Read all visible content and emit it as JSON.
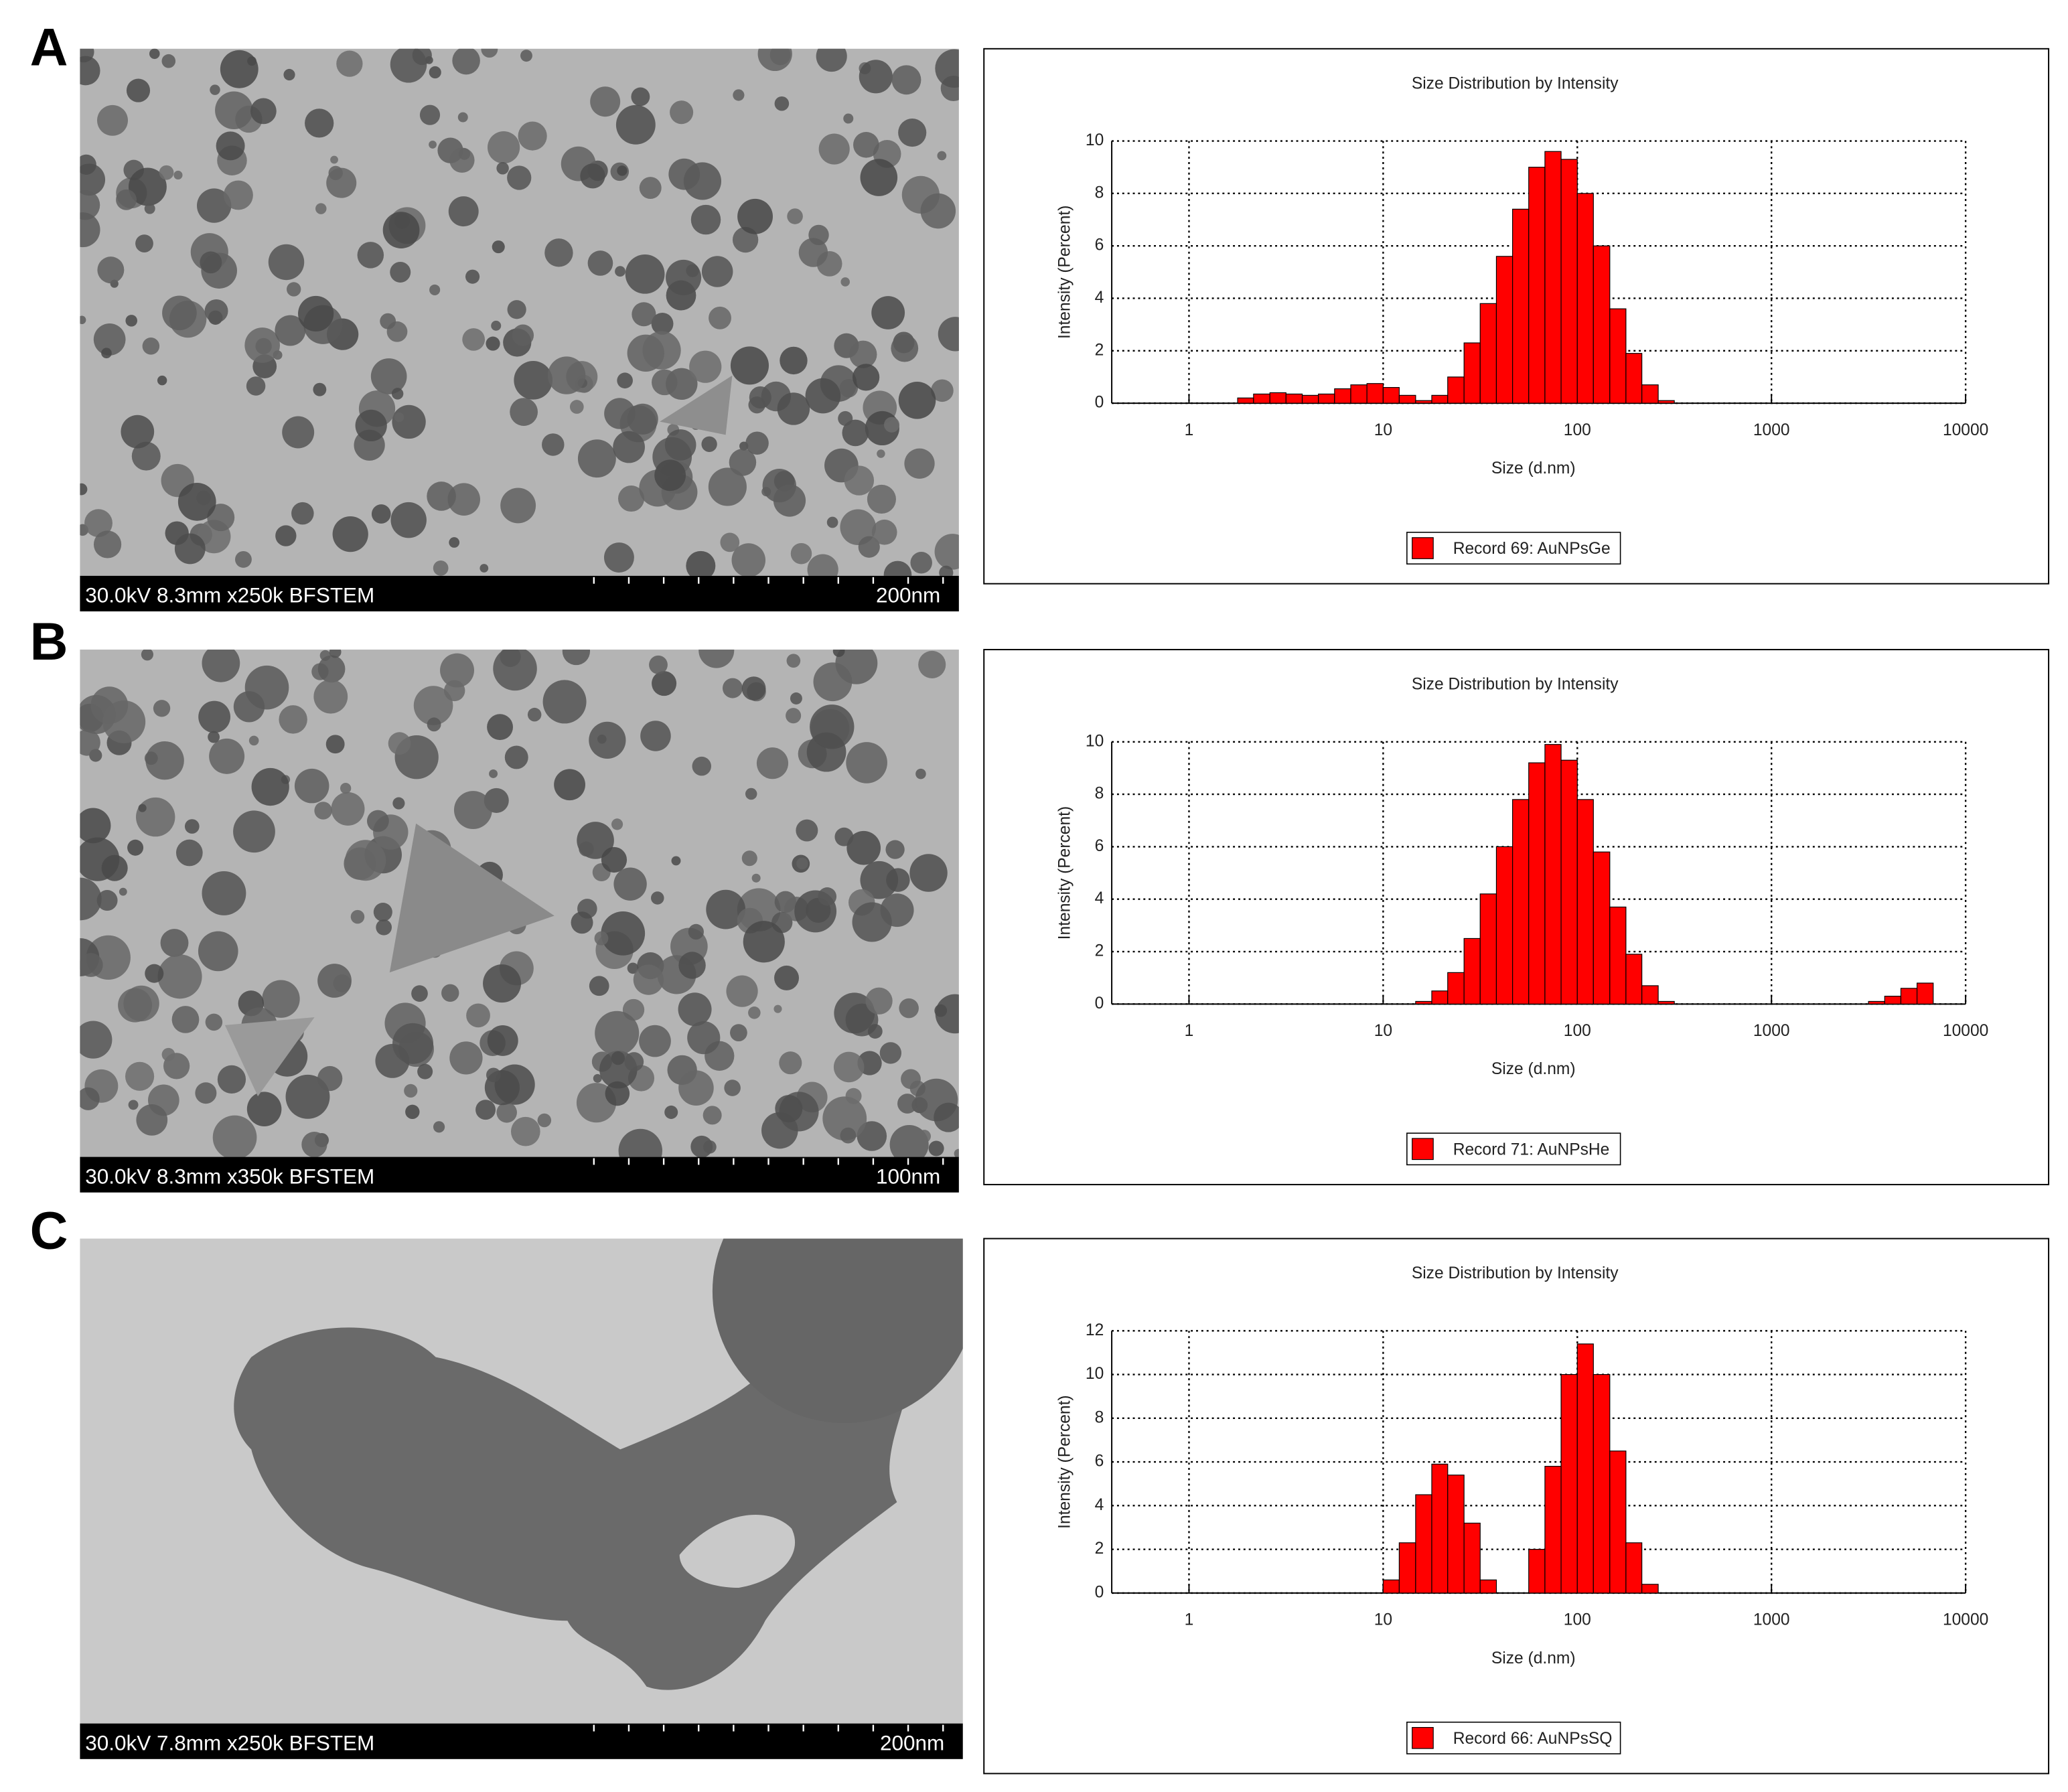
{
  "panels": [
    {
      "label": "A",
      "sem_info": "30.0kV 8.3mm x250k BFSTEM",
      "sem_scale": "200nm"
    },
    {
      "label": "B",
      "sem_info": "30.0kV 8.3mm x350k BFSTEM",
      "sem_scale": "100nm"
    },
    {
      "label": "C",
      "sem_info": "30.0kV 7.8mm x250k BFSTEM",
      "sem_scale": "200nm"
    }
  ],
  "chart_data": [
    {
      "type": "histogram",
      "title": "Size Distribution by Intensity",
      "x_label": "Size (d.nm)",
      "y_label": "Intensity (Percent)",
      "xscale": "log",
      "xlim": [
        0.4,
        10000
      ],
      "xticks": [
        1,
        10,
        100,
        1000,
        10000
      ],
      "ylim": [
        0,
        10
      ],
      "yticks": [
        0,
        2,
        4,
        6,
        8,
        10
      ],
      "grid": true,
      "legend": "bottom",
      "bins": [
        1.78,
        2.15,
        2.61,
        3.16,
        3.83,
        4.64,
        5.62,
        6.81,
        8.25,
        10,
        12.1,
        14.7,
        17.8,
        21.5,
        26.1,
        31.6,
        38.3,
        46.4,
        56.2,
        68.1,
        82.5,
        100,
        121,
        147,
        178,
        215,
        261,
        316
      ],
      "series": [
        {
          "name": "Record 69: AuNPsGe",
          "color": "#ff0000",
          "values": [
            0.2,
            0.35,
            0.4,
            0.35,
            0.3,
            0.35,
            0.55,
            0.7,
            0.75,
            0.6,
            0.3,
            0.1,
            0.3,
            1.0,
            2.3,
            3.8,
            5.6,
            7.4,
            9.0,
            9.6,
            9.3,
            8.0,
            6.0,
            3.6,
            1.9,
            0.7,
            0.1
          ]
        }
      ]
    },
    {
      "type": "histogram",
      "title": "Size Distribution by Intensity",
      "x_label": "Size (d.nm)",
      "y_label": "Intensity (Percent)",
      "xscale": "log",
      "xlim": [
        0.4,
        10000
      ],
      "xticks": [
        1,
        10,
        100,
        1000,
        10000
      ],
      "ylim": [
        0,
        10
      ],
      "yticks": [
        0,
        2,
        4,
        6,
        8,
        10
      ],
      "grid": true,
      "legend": "bottom",
      "bins": [
        14.7,
        17.8,
        21.5,
        26.1,
        31.6,
        38.3,
        46.4,
        56.2,
        68.1,
        82.5,
        100,
        121,
        147,
        178,
        215,
        261,
        316,
        383,
        464,
        562,
        681,
        825,
        1000,
        1210,
        1470,
        1780,
        2150,
        2610,
        3160,
        3830,
        4640,
        5620,
        6810
      ],
      "series": [
        {
          "name": "Record 71: AuNPsHe",
          "color": "#ff0000",
          "values": [
            0.1,
            0.5,
            1.2,
            2.5,
            4.2,
            6.0,
            7.8,
            9.2,
            9.9,
            9.3,
            7.8,
            5.8,
            3.7,
            1.9,
            0.7,
            0.1,
            0,
            0,
            0,
            0,
            0,
            0,
            0,
            0,
            0,
            0,
            0,
            0,
            0.1,
            0.3,
            0.6,
            0.8
          ]
        }
      ]
    },
    {
      "type": "histogram",
      "title": "Size Distribution by Intensity",
      "x_label": "Size (d.nm)",
      "y_label": "Intensity (Percent)",
      "xscale": "log",
      "xlim": [
        0.4,
        10000
      ],
      "xticks": [
        1,
        10,
        100,
        1000,
        10000
      ],
      "ylim": [
        0,
        12
      ],
      "yticks": [
        0,
        2,
        4,
        6,
        8,
        10,
        12
      ],
      "grid": true,
      "legend": "bottom",
      "bins": [
        10,
        12.1,
        14.7,
        17.8,
        21.5,
        26.1,
        31.6,
        38.3,
        46.4,
        56.2,
        68.1,
        82.5,
        100,
        121,
        147,
        178,
        215,
        261
      ],
      "series": [
        {
          "name": "Record 66: AuNPsSQ",
          "color": "#ff0000",
          "values": [
            0.6,
            2.3,
            4.5,
            5.9,
            5.4,
            3.2,
            0.6,
            0,
            0,
            2.0,
            5.8,
            10.0,
            11.4,
            10.0,
            6.5,
            2.3,
            0.4
          ]
        }
      ]
    }
  ]
}
